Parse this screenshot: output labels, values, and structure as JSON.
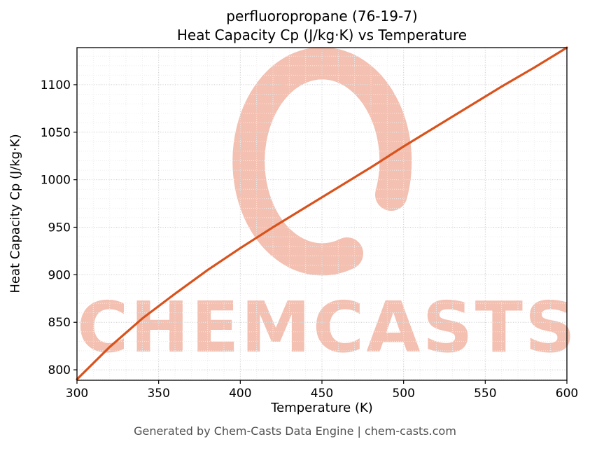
{
  "chart_data": {
    "type": "line",
    "title_line1": "perfluoropropane (76-19-7)",
    "title_line2": "Heat Capacity Cp (J/kg·K) vs Temperature",
    "xlabel": "Temperature (K)",
    "ylabel": "Heat Capacity Cp (J/kg·K)",
    "xlim": [
      300,
      600
    ],
    "ylim": [
      789,
      1139
    ],
    "x_ticks": [
      300,
      350,
      400,
      450,
      500,
      550,
      600
    ],
    "y_ticks": [
      800,
      850,
      900,
      950,
      1000,
      1050,
      1100
    ],
    "grid": true,
    "grid_style": "dotted",
    "legend": "none",
    "series": [
      {
        "name": "Heat Capacity Cp",
        "color": "#d9521c",
        "x": [
          300,
          320,
          340,
          360,
          380,
          400,
          420,
          440,
          460,
          480,
          500,
          520,
          540,
          560,
          580,
          600
        ],
        "y": [
          790,
          824,
          854,
          880,
          905,
          928,
          950,
          971,
          992,
          1013,
          1035,
          1056,
          1077,
          1098,
          1118,
          1139
        ]
      }
    ]
  },
  "watermark": {
    "text": "CHEMCASTS",
    "color": "#f3c0b1"
  },
  "footer": {
    "text": "Generated by Chem-Casts Data Engine | chem-casts.com"
  }
}
